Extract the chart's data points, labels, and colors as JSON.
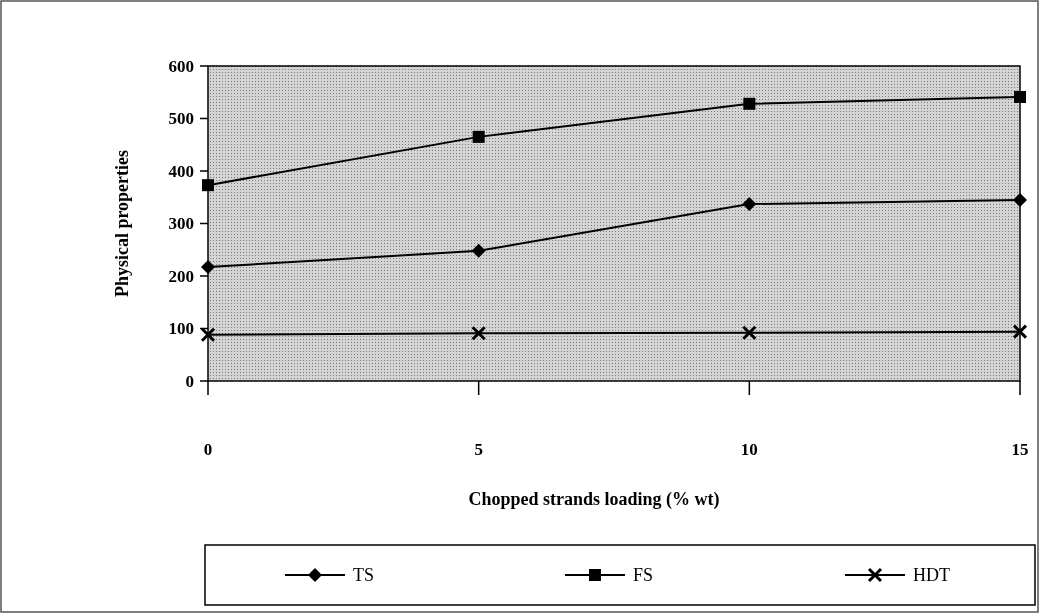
{
  "chart_data": {
    "type": "line",
    "xlabel": "Chopped strands loading (% wt)",
    "ylabel": "Physical properties",
    "x": [
      0,
      5,
      10,
      15
    ],
    "xlim": [
      0,
      15
    ],
    "xticks": [
      0,
      5,
      10,
      15
    ],
    "ylim": [
      0,
      600
    ],
    "yticks": [
      0,
      100,
      200,
      300,
      400,
      500,
      600
    ],
    "grid": false,
    "legend": "bottom",
    "series": [
      {
        "name": "TS",
        "color": "#000000",
        "marker": "diamond",
        "values": [
          217,
          248,
          337,
          345
        ]
      },
      {
        "name": "FS",
        "color": "#000000",
        "marker": "square",
        "values": [
          373,
          465,
          528,
          541
        ]
      },
      {
        "name": "HDT",
        "color": "#000000",
        "marker": "cross",
        "values": [
          88,
          91,
          92,
          94
        ]
      }
    ]
  }
}
